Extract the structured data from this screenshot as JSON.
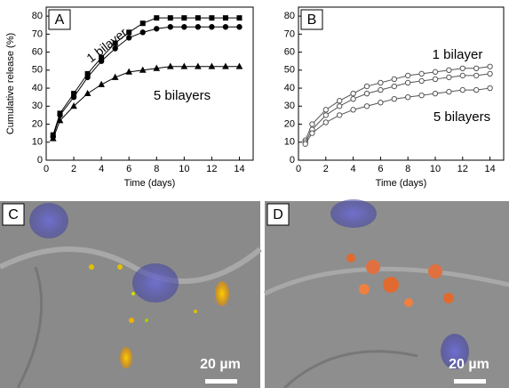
{
  "chart_data": [
    {
      "type": "line",
      "panel": "A",
      "xlabel": "Time (days)",
      "ylabel": "Cumulative release (%)",
      "x": [
        0.5,
        1,
        2,
        3,
        4,
        5,
        6,
        7,
        8,
        9,
        10,
        11,
        12,
        13,
        14
      ],
      "xlim": [
        0,
        15
      ],
      "xticks": [
        0,
        2,
        4,
        6,
        8,
        10,
        12,
        14
      ],
      "ylim": [
        0,
        85
      ],
      "yticks": [
        0,
        10,
        20,
        30,
        40,
        50,
        60,
        70,
        80
      ],
      "series": [
        {
          "color": "#000000",
          "marker": "square",
          "filled": true,
          "values": [
            14,
            26,
            37,
            48,
            57,
            65,
            71,
            76,
            79,
            79,
            79,
            79,
            79,
            79,
            79
          ]
        },
        {
          "color": "#000000",
          "marker": "circle",
          "filled": true,
          "values": [
            13,
            25,
            35,
            46,
            55,
            62,
            68,
            71,
            73,
            74,
            74,
            74,
            74,
            74,
            74
          ]
        },
        {
          "color": "#000000",
          "marker": "triangle",
          "filled": true,
          "values": [
            12,
            22,
            30,
            37,
            42,
            46,
            49,
            50,
            51,
            52,
            52,
            52,
            52,
            52,
            52
          ]
        }
      ],
      "annotations": [
        "1 bilayer",
        "5 bilayers"
      ]
    },
    {
      "type": "line",
      "panel": "B",
      "xlabel": "Time (days)",
      "x": [
        0.5,
        1,
        2,
        3,
        4,
        5,
        6,
        7,
        8,
        9,
        10,
        11,
        12,
        13,
        14
      ],
      "xlim": [
        0,
        15
      ],
      "xticks": [
        0,
        2,
        4,
        6,
        8,
        10,
        12,
        14
      ],
      "ylim": [
        0,
        85
      ],
      "yticks": [
        0,
        10,
        20,
        30,
        40,
        50,
        60,
        70,
        80
      ],
      "series": [
        {
          "color": "#555555",
          "marker": "circle",
          "filled": false,
          "values": [
            11,
            20,
            28,
            33,
            37,
            41,
            43,
            45,
            47,
            48,
            49,
            50,
            51,
            51,
            52
          ]
        },
        {
          "color": "#555555",
          "marker": "circle",
          "filled": false,
          "values": [
            10,
            17,
            25,
            30,
            34,
            37,
            39,
            41,
            43,
            44,
            45,
            46,
            47,
            47,
            48
          ]
        },
        {
          "color": "#555555",
          "marker": "circle",
          "filled": false,
          "values": [
            9,
            15,
            21,
            25,
            28,
            30,
            32,
            34,
            35,
            36,
            37,
            38,
            39,
            39,
            40
          ]
        }
      ],
      "annotations": [
        "1 bilayer",
        "5 bilayers"
      ]
    }
  ],
  "images": [
    {
      "label": "C",
      "scale_bar": "20 µm"
    },
    {
      "label": "D",
      "scale_bar": "20 µm"
    }
  ]
}
